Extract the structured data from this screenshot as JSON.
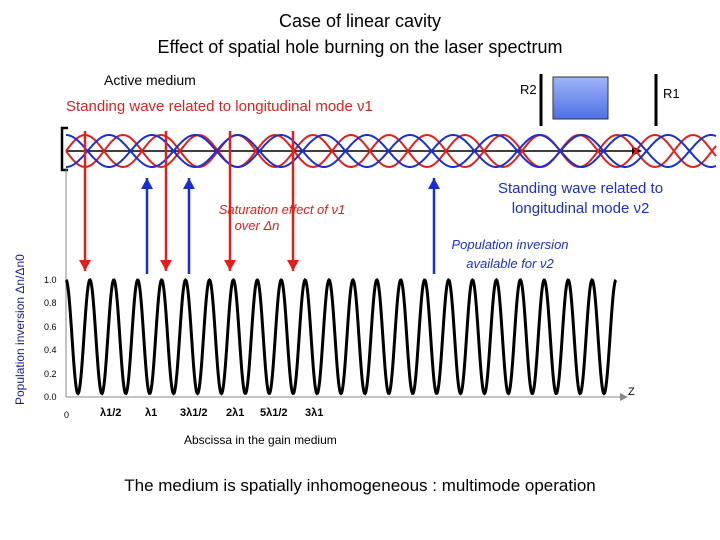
{
  "title_line1": "Case of linear cavity",
  "title_line2": "Effect of  spatial hole burning on the laser spectrum",
  "active_medium_label": "Active medium",
  "mirror_r2_label": "R2",
  "mirror_r1_label": "R1",
  "standing_wave_1_label": "Standing wave related to longitudinal mode ν1",
  "saturation_label_line1": "Saturation effect of ν1",
  "saturation_label_line2": "over Δn",
  "standing_wave_2_label_line1": "Standing wave related to",
  "standing_wave_2_label_line2": "longitudinal mode ν2",
  "population_available_line1": "Population inversion",
  "population_available_line2": "available for  ν2",
  "y_axis_label": "Population inversion Δn/Δn0",
  "x_axis_label": "Abscissa in the gain medium",
  "z_label": "Z",
  "conclusion": "The medium is spatially inhomogeneous : multimode operation",
  "colors": {
    "mode1": "#e0201a",
    "mode2": "#1a2fd0",
    "curve": "#000000",
    "box_fill": "#6f8ff0"
  },
  "chart_data": {
    "type": "line",
    "xlabel": "Abscissa in the gain medium",
    "ylabel": "Population inversion Δn/Δn0",
    "ylim": [
      0,
      1
    ],
    "y_ticks": [
      "0.0",
      "0.2",
      "0.4",
      "0.6",
      "0.8",
      "1.0"
    ],
    "x_ticks": [
      "0",
      "λ1/2",
      "λ1",
      "3λ1/2",
      "2λ1",
      "5λ1/2",
      "3λ1"
    ],
    "series": [
      {
        "x_periods": 23,
        "y_min": 0.03,
        "y_max": 1.0
      }
    ]
  }
}
